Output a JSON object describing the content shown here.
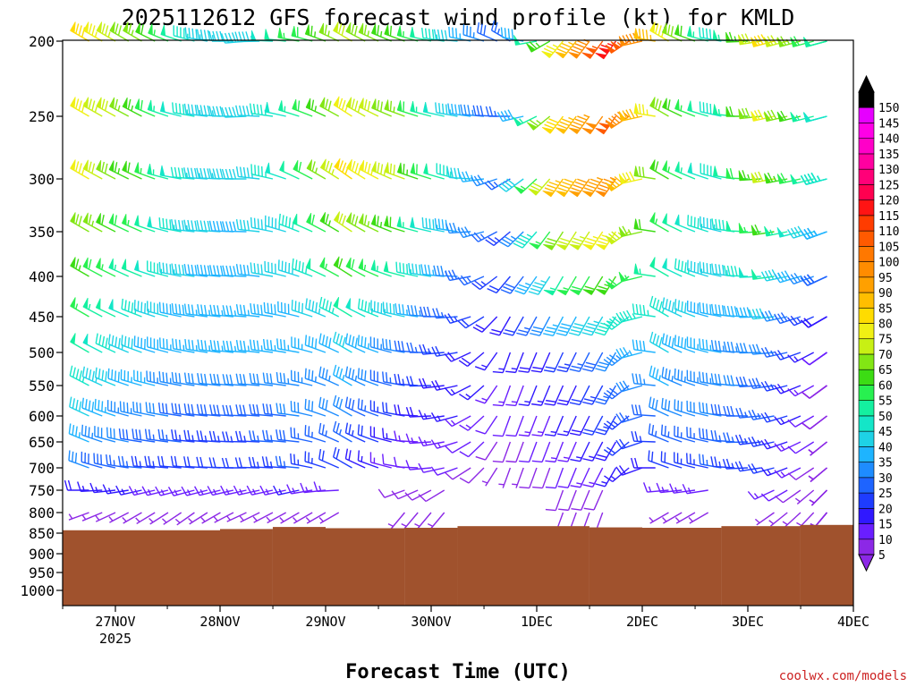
{
  "chart_data": {
    "type": "wind-barb profile",
    "title": "2025112612 GFS forecast wind profile (kt) for KMLD",
    "xlabel": "Forecast Time (UTC)",
    "credit": "coolwx.com/models",
    "credit_color": "#cc2222",
    "terrain_color": "#a0522d",
    "y_axis": {
      "scale": "log-pressure",
      "range_hpa": [
        200,
        1000
      ],
      "ticks": [
        200,
        250,
        300,
        350,
        400,
        450,
        500,
        550,
        600,
        650,
        700,
        750,
        800,
        850,
        900,
        950,
        1000
      ]
    },
    "x_axis": {
      "ticks": [
        "27NOV",
        "28NOV",
        "29NOV",
        "30NOV",
        "1DEC",
        "2DEC",
        "3DEC",
        "4DEC"
      ],
      "year_label": "2025"
    },
    "colorbar": {
      "levels": [
        5,
        10,
        15,
        20,
        25,
        30,
        35,
        40,
        45,
        50,
        55,
        60,
        65,
        70,
        75,
        80,
        85,
        90,
        95,
        100,
        105,
        110,
        115,
        120,
        125,
        130,
        135,
        140,
        145,
        150
      ],
      "colors": [
        "#8c28e6",
        "#6a1eff",
        "#3018ff",
        "#1e3cff",
        "#1e64ff",
        "#1e8cff",
        "#1eb4ff",
        "#1ed2e6",
        "#14e6c8",
        "#14f0a0",
        "#28f050",
        "#3cdc14",
        "#82e614",
        "#c8f014",
        "#f0f014",
        "#ffdc00",
        "#ffbe00",
        "#ffa000",
        "#ff8c00",
        "#ff7800",
        "#ff5a00",
        "#ff3c00",
        "#ff1414",
        "#ff0050",
        "#ff0078",
        "#ff00a0",
        "#ff00c8",
        "#ff00e6",
        "#e600ff",
        "#000000"
      ]
    },
    "levels_hpa": [
      200,
      250,
      300,
      350,
      400,
      450,
      500,
      550,
      600,
      650,
      700,
      750,
      800
    ],
    "surface_pressure_hpa_segments": [
      {
        "from": "26NOV12",
        "to": "28NOV00",
        "p": 843
      },
      {
        "from": "28NOV00",
        "to": "28NOV12",
        "p": 840
      },
      {
        "from": "28NOV12",
        "to": "29NOV00",
        "p": 835
      },
      {
        "from": "29NOV00",
        "to": "29NOV18",
        "p": 838
      },
      {
        "from": "29NOV18",
        "to": "30NOV06",
        "p": 837
      },
      {
        "from": "30NOV06",
        "to": "1DEC12",
        "p": 833
      },
      {
        "from": "1DEC12",
        "to": "2DEC00",
        "p": 836
      },
      {
        "from": "2DEC00",
        "to": "2DEC18",
        "p": 837
      },
      {
        "from": "2DEC18",
        "to": "3DEC12",
        "p": 833
      },
      {
        "from": "3DEC12",
        "to": "4DEC00",
        "p": 830
      }
    ],
    "wind_profile_kt": [
      {
        "p": 200,
        "knots": [
          {
            "t": "26NOV18",
            "dir": 300,
            "spd": 80
          },
          {
            "t": "27NOV06",
            "dir": 300,
            "spd": 65
          },
          {
            "t": "27NOV18",
            "dir": 285,
            "spd": 45
          },
          {
            "t": "28NOV06",
            "dir": 265,
            "spd": 40
          },
          {
            "t": "28NOV18",
            "dir": 280,
            "spd": 55
          },
          {
            "t": "29NOV06",
            "dir": 300,
            "spd": 70
          },
          {
            "t": "29NOV18",
            "dir": 290,
            "spd": 60
          },
          {
            "t": "30NOV06",
            "dir": 275,
            "spd": 40
          },
          {
            "t": "30NOV18",
            "dir": 300,
            "spd": 25
          },
          {
            "t": "1DEC06",
            "dir": 220,
            "spd": 75
          },
          {
            "t": "1DEC18",
            "dir": 215,
            "spd": 115
          },
          {
            "t": "2DEC06",
            "dir": 300,
            "spd": 75
          },
          {
            "t": "2DEC18",
            "dir": 280,
            "spd": 45
          },
          {
            "t": "3DEC06",
            "dir": 255,
            "spd": 80
          },
          {
            "t": "3DEC18",
            "dir": 255,
            "spd": 50
          }
        ]
      },
      {
        "p": 300,
        "knots": [
          {
            "t": "26NOV18",
            "dir": 300,
            "spd": 75
          },
          {
            "t": "27NOV06",
            "dir": 295,
            "spd": 60
          },
          {
            "t": "27NOV18",
            "dir": 275,
            "spd": 45
          },
          {
            "t": "28NOV06",
            "dir": 270,
            "spd": 40
          },
          {
            "t": "28NOV18",
            "dir": 295,
            "spd": 50
          },
          {
            "t": "29NOV06",
            "dir": 305,
            "spd": 80
          },
          {
            "t": "29NOV18",
            "dir": 290,
            "spd": 70
          },
          {
            "t": "30NOV06",
            "dir": 285,
            "spd": 45
          },
          {
            "t": "30NOV18",
            "dir": 240,
            "spd": 25
          },
          {
            "t": "1DEC06",
            "dir": 215,
            "spd": 85
          },
          {
            "t": "1DEC18",
            "dir": 215,
            "spd": 95
          },
          {
            "t": "2DEC06",
            "dir": 300,
            "spd": 60
          },
          {
            "t": "2DEC18",
            "dir": 285,
            "spd": 45
          },
          {
            "t": "3DEC06",
            "dir": 260,
            "spd": 70
          },
          {
            "t": "3DEC18",
            "dir": 255,
            "spd": 45
          }
        ]
      },
      {
        "p": 500,
        "knots": [
          {
            "t": "26NOV18",
            "dir": 300,
            "spd": 50
          },
          {
            "t": "27NOV06",
            "dir": 290,
            "spd": 40
          },
          {
            "t": "27NOV18",
            "dir": 280,
            "spd": 35
          },
          {
            "t": "28NOV06",
            "dir": 275,
            "spd": 35
          },
          {
            "t": "28NOV18",
            "dir": 280,
            "spd": 35
          },
          {
            "t": "29NOV06",
            "dir": 300,
            "spd": 40
          },
          {
            "t": "29NOV18",
            "dir": 280,
            "spd": 30
          },
          {
            "t": "30NOV06",
            "dir": 260,
            "spd": 20
          },
          {
            "t": "30NOV18",
            "dir": 200,
            "spd": 15
          },
          {
            "t": "1DEC06",
            "dir": 205,
            "spd": 20
          },
          {
            "t": "1DEC18",
            "dir": 210,
            "spd": 30
          },
          {
            "t": "2DEC06",
            "dir": 300,
            "spd": 40
          },
          {
            "t": "2DEC18",
            "dir": 280,
            "spd": 35
          },
          {
            "t": "3DEC06",
            "dir": 265,
            "spd": 30
          },
          {
            "t": "3DEC18",
            "dir": 235,
            "spd": 10
          }
        ]
      },
      {
        "p": 700,
        "knots": [
          {
            "t": "26NOV18",
            "dir": 290,
            "spd": 30
          },
          {
            "t": "27NOV06",
            "dir": 275,
            "spd": 25
          },
          {
            "t": "27NOV18",
            "dir": 275,
            "spd": 20
          },
          {
            "t": "28NOV06",
            "dir": 270,
            "spd": 20
          },
          {
            "t": "28NOV18",
            "dir": 275,
            "spd": 25
          },
          {
            "t": "29NOV06",
            "dir": 300,
            "spd": 20
          },
          {
            "t": "29NOV18",
            "dir": 280,
            "spd": 10
          },
          {
            "t": "30NOV06",
            "dir": 250,
            "spd": 10
          },
          {
            "t": "30NOV18",
            "dir": 200,
            "spd": 5
          },
          {
            "t": "1DEC06",
            "dir": 200,
            "spd": 10
          },
          {
            "t": "1DEC18",
            "dir": 210,
            "spd": 15
          },
          {
            "t": "2DEC06",
            "dir": 290,
            "spd": 20
          },
          {
            "t": "2DEC18",
            "dir": 280,
            "spd": 25
          },
          {
            "t": "3DEC06",
            "dir": 255,
            "spd": 20
          },
          {
            "t": "3DEC18",
            "dir": 230,
            "spd": 5
          }
        ]
      },
      {
        "p": 800,
        "knots": [
          {
            "t": "26NOV18",
            "dir": 250,
            "spd": 5
          },
          {
            "t": "27NOV06",
            "dir": 240,
            "spd": 5
          },
          {
            "t": "27NOV18",
            "dir": 235,
            "spd": 5
          },
          {
            "t": "28NOV06",
            "dir": 245,
            "spd": 5
          },
          {
            "t": "28NOV18",
            "dir": 240,
            "spd": 5
          },
          {
            "t": "29NOV18",
            "dir": 220,
            "spd": 5
          },
          {
            "t": "1DEC06",
            "dir": 200,
            "spd": 5
          },
          {
            "t": "2DEC06",
            "dir": 240,
            "spd": 5
          },
          {
            "t": "3DEC06",
            "dir": 235,
            "spd": 5
          },
          {
            "t": "3DEC18",
            "dir": 220,
            "spd": 5
          }
        ]
      }
    ]
  }
}
